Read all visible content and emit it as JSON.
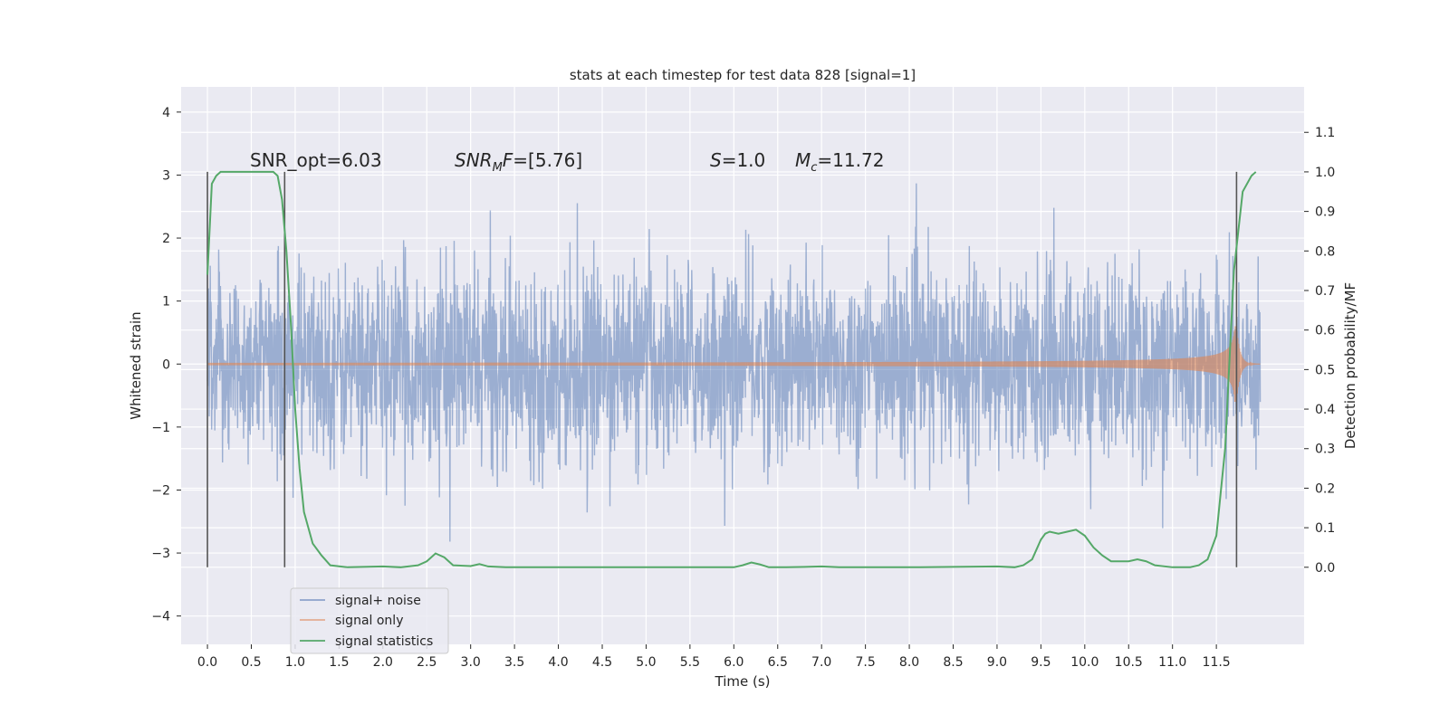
{
  "chart_data": {
    "type": "line",
    "title": "stats at each timestep for test data 828 [signal=1]",
    "xlabel": "Time (s)",
    "ylabel": "Whitened strain",
    "ylabel_right": "Detection probability/MF",
    "xlim": [
      -0.3,
      12.5
    ],
    "ylim": [
      -4.45,
      4.4
    ],
    "ylim_right": [
      -0.195,
      1.215
    ],
    "xticks": [
      "0.0",
      "0.5",
      "1.0",
      "1.5",
      "2.0",
      "2.5",
      "3.0",
      "3.5",
      "4.0",
      "4.5",
      "5.0",
      "5.5",
      "6.0",
      "6.5",
      "7.0",
      "7.5",
      "8.0",
      "8.5",
      "9.0",
      "9.5",
      "10.0",
      "10.5",
      "11.0",
      "11.5"
    ],
    "yticks": [
      "−4",
      "−3",
      "−2",
      "−1",
      "0",
      "1",
      "2",
      "3",
      "4"
    ],
    "yticks_right": [
      "0.0",
      "0.1",
      "0.2",
      "0.3",
      "0.4",
      "0.5",
      "0.6",
      "0.7",
      "0.8",
      "0.9",
      "1.0",
      "1.1"
    ],
    "grid": true,
    "legend_position": "lower-left",
    "annotations": [
      {
        "label": "SNR_opt",
        "value": "=6.03"
      },
      {
        "label": "SNR",
        "sub": "M",
        "tail": "F",
        "value": "=[5.76]"
      },
      {
        "label": "S",
        "value": "=1.0"
      },
      {
        "label": "M",
        "sub": "c",
        "value": "=11.72"
      }
    ],
    "vertical_markers": [
      0.0,
      0.88,
      11.73
    ],
    "series": [
      {
        "name": "signal+ noise",
        "color": "#4c72b0",
        "x_range": [
          0.0,
          12.0
        ],
        "amplitude_std": 0.75
      },
      {
        "name": "signal only",
        "color": "#dd8452",
        "x_range": [
          0.0,
          12.0
        ],
        "peak_amplitude": 0.6,
        "merger_time": 11.73
      },
      {
        "name": "signal statistics",
        "color": "#55a868",
        "x": [
          0.0,
          0.05,
          0.1,
          0.15,
          0.2,
          0.3,
          0.4,
          0.5,
          0.6,
          0.7,
          0.75,
          0.8,
          0.85,
          0.9,
          0.95,
          1.0,
          1.05,
          1.1,
          1.2,
          1.3,
          1.4,
          1.6,
          2.0,
          2.2,
          2.4,
          2.5,
          2.6,
          2.7,
          2.8,
          3.0,
          3.1,
          3.2,
          3.4,
          4.0,
          5.0,
          6.0,
          6.1,
          6.2,
          6.3,
          6.4,
          6.6,
          7.0,
          7.2,
          7.5,
          8.0,
          9.0,
          9.2,
          9.3,
          9.4,
          9.5,
          9.55,
          9.6,
          9.7,
          9.8,
          9.9,
          10.0,
          10.1,
          10.2,
          10.3,
          10.5,
          10.6,
          10.7,
          10.8,
          11.0,
          11.2,
          11.3,
          11.4,
          11.5,
          11.6,
          11.7,
          11.8,
          11.9,
          11.95
        ],
        "y": [
          0.74,
          0.97,
          0.99,
          1.0,
          1.0,
          1.0,
          1.0,
          1.0,
          1.0,
          1.0,
          1.0,
          0.99,
          0.93,
          0.8,
          0.62,
          0.4,
          0.25,
          0.14,
          0.06,
          0.03,
          0.005,
          0.0,
          0.002,
          0.0,
          0.005,
          0.015,
          0.035,
          0.025,
          0.005,
          0.003,
          0.008,
          0.002,
          0.0,
          0.0,
          0.0,
          0.0,
          0.005,
          0.012,
          0.007,
          0.0,
          0.0,
          0.002,
          0.0,
          0.0,
          0.0,
          0.002,
          0.0,
          0.005,
          0.02,
          0.07,
          0.085,
          0.09,
          0.085,
          0.09,
          0.095,
          0.08,
          0.05,
          0.03,
          0.015,
          0.015,
          0.02,
          0.015,
          0.005,
          0.0,
          0.0,
          0.005,
          0.02,
          0.08,
          0.3,
          0.75,
          0.95,
          0.99,
          1.0
        ]
      }
    ]
  }
}
